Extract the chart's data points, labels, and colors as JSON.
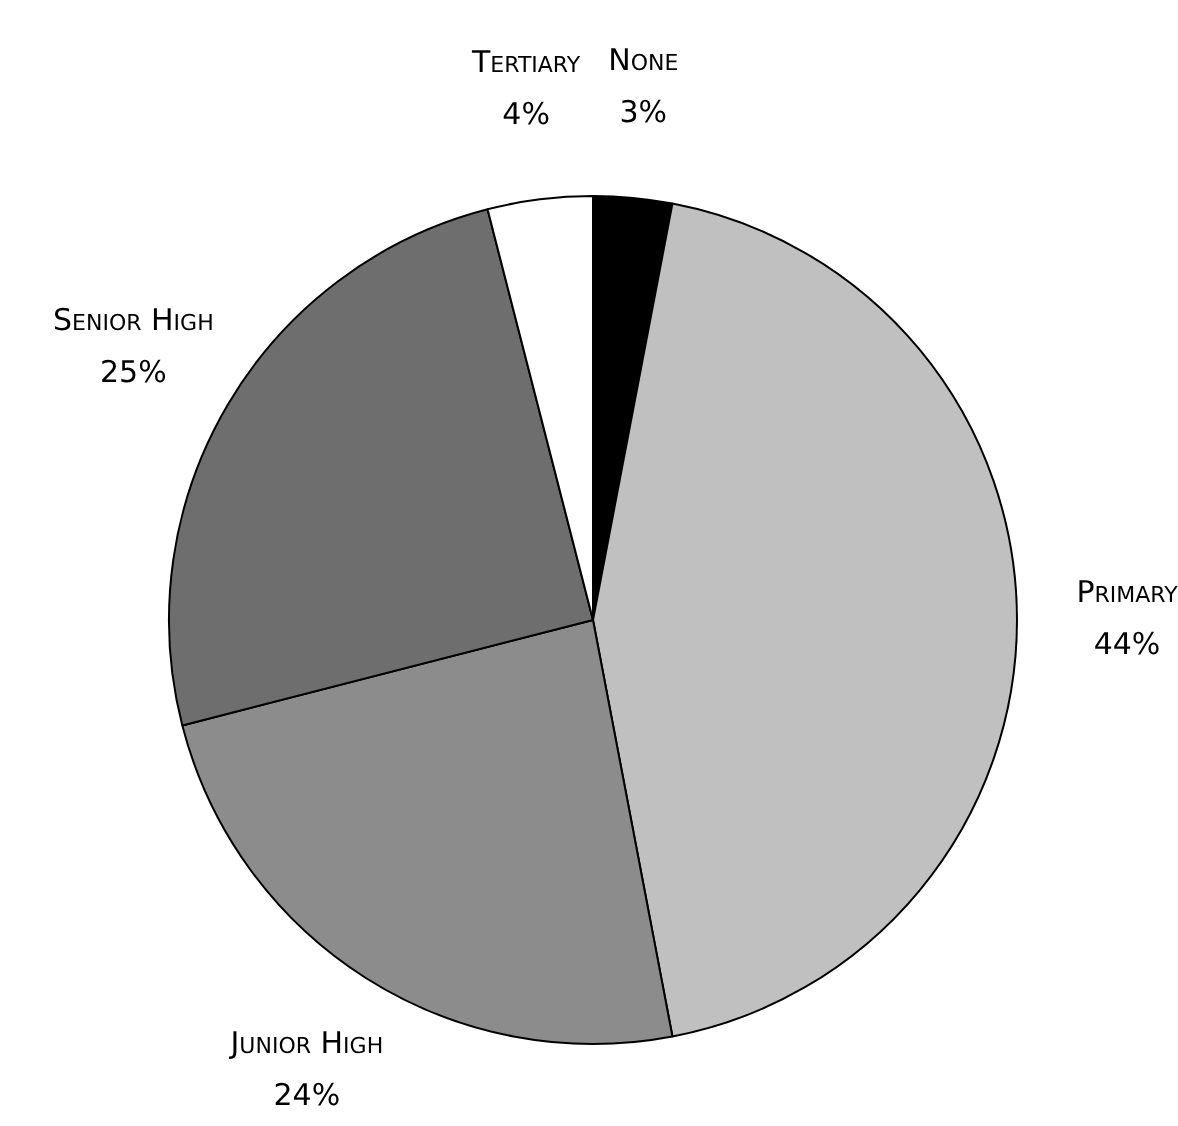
{
  "chart_data": {
    "type": "pie",
    "categories": [
      "None",
      "Primary",
      "Junior High",
      "Senior High",
      "Tertiary"
    ],
    "values": [
      3,
      44,
      24,
      25,
      4
    ],
    "value_labels": [
      "3%",
      "44%",
      "24%",
      "25%",
      "4%"
    ],
    "colors": [
      "#000000",
      "#c0c0c0",
      "#8c8c8c",
      "#6e6e6e",
      "#ffffff"
    ],
    "legend": false
  }
}
